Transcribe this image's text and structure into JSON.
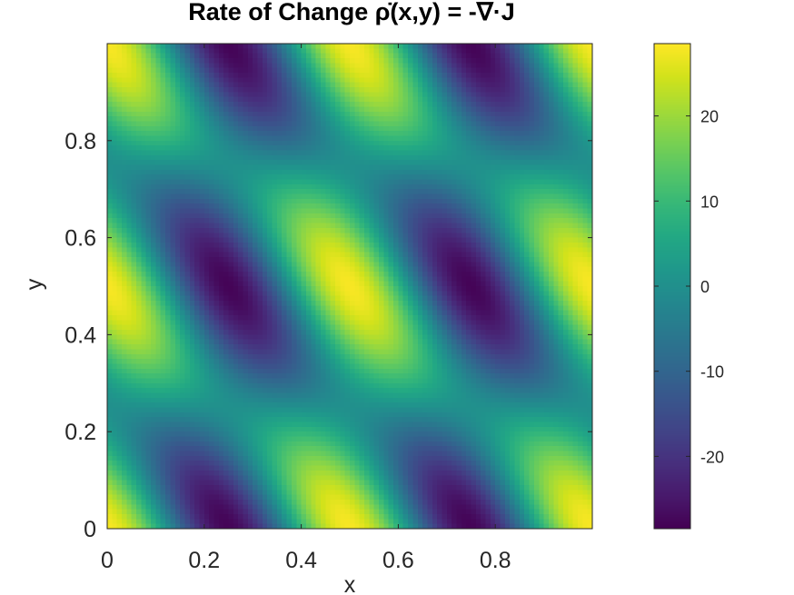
{
  "chart_data": {
    "type": "heatmap",
    "title": "Rate of Change ρ̇(x,y) = -∇·J",
    "xlabel": "x",
    "ylabel": "y",
    "xlim": [
      0,
      1
    ],
    "ylim": [
      0,
      1
    ],
    "x_ticks": [
      0,
      0.2,
      0.4,
      0.6,
      0.8
    ],
    "x_tick_labels": [
      "0",
      "0.2",
      "0.4",
      "0.6",
      "0.8"
    ],
    "y_ticks": [
      0,
      0.2,
      0.4,
      0.6,
      0.8
    ],
    "y_tick_labels": [
      "0",
      "0.2",
      "0.4",
      "0.6",
      "0.8"
    ],
    "colormap": "viridis",
    "colorbar": {
      "range": [
        -28.5,
        28.5
      ],
      "ticks": [
        -20,
        -10,
        0,
        10,
        20
      ],
      "tick_labels": [
        "-20",
        "-10",
        "0",
        "10",
        "20"
      ]
    },
    "grid": false,
    "grid_resolution": 100,
    "field": "dρ/dt = -∇·J on the unit square; maxima ≈ +28 at (0.0,0.0), (0.5,0.0), (0.0,0.5), (0.5,0.5), (1.0,0.5); minima ≈ -28 at (0.25,0.0), (0.75,0.0), (0.25,0.5), (0.75,0.5); pattern repeats with period 0.5 in x and 0.5 in y, lobes tilted from upper-left to lower-right",
    "sample_values": [
      {
        "x": 0.0,
        "y": 0.0,
        "value": 28.0
      },
      {
        "x": 0.25,
        "y": 0.0,
        "value": -28.0
      },
      {
        "x": 0.5,
        "y": 0.0,
        "value": 28.0
      },
      {
        "x": 0.75,
        "y": 0.0,
        "value": -28.0
      },
      {
        "x": 0.0,
        "y": 0.5,
        "value": 28.0
      },
      {
        "x": 0.25,
        "y": 0.5,
        "value": -28.0
      },
      {
        "x": 0.5,
        "y": 0.5,
        "value": 28.0
      },
      {
        "x": 0.75,
        "y": 0.5,
        "value": -28.0
      },
      {
        "x": 0.5,
        "y": 0.25,
        "value": 0.0
      }
    ]
  }
}
